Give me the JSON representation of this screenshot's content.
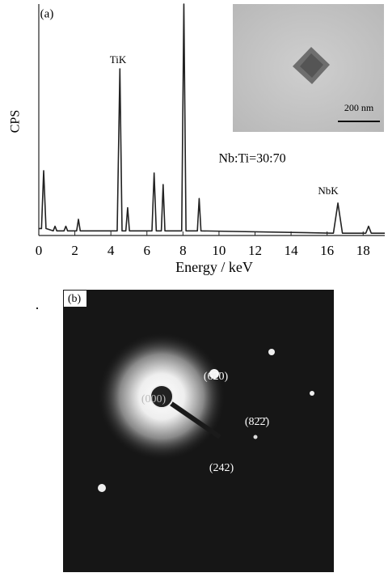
{
  "chart_data": {
    "type": "line",
    "panel_label": "(a)",
    "x_label": "Energy / keV",
    "y_label": "CPS",
    "x": [
      0,
      0.15,
      0.27,
      0.4,
      0.8,
      0.9,
      1.0,
      1.4,
      1.5,
      1.6,
      2.1,
      2.2,
      2.3,
      4.35,
      4.5,
      4.62,
      4.83,
      4.93,
      5.03,
      6.28,
      6.4,
      6.52,
      6.8,
      6.9,
      7.0,
      7.93,
      8.05,
      8.17,
      8.8,
      8.9,
      9.0,
      16.35,
      16.6,
      16.85,
      18.15,
      18.3,
      18.45,
      19.2
    ],
    "values": [
      3,
      3,
      28,
      3,
      2,
      4,
      2,
      2,
      4,
      2,
      2,
      7,
      2,
      2,
      72,
      2,
      2,
      12,
      2,
      2,
      27,
      2,
      2,
      22,
      2,
      2,
      100,
      2,
      2,
      16,
      2,
      1,
      14,
      1,
      1,
      4,
      1,
      1
    ],
    "color": "#222222",
    "xlim": [
      0,
      19.2
    ],
    "ylim": [
      0,
      100
    ],
    "xticks": [
      0,
      2,
      4,
      6,
      8,
      10,
      12,
      14,
      16,
      18
    ],
    "annotations": [
      "TiK",
      "NbK",
      "Nb:Ti=30:70"
    ],
    "inset_scale_label": "200 nm"
  },
  "diffraction": {
    "panel_label": "(b)",
    "spot_labels": [
      "(62̄0)",
      "(000)",
      "(82̄2̄)",
      "(242)"
    ],
    "side_mark": "."
  }
}
